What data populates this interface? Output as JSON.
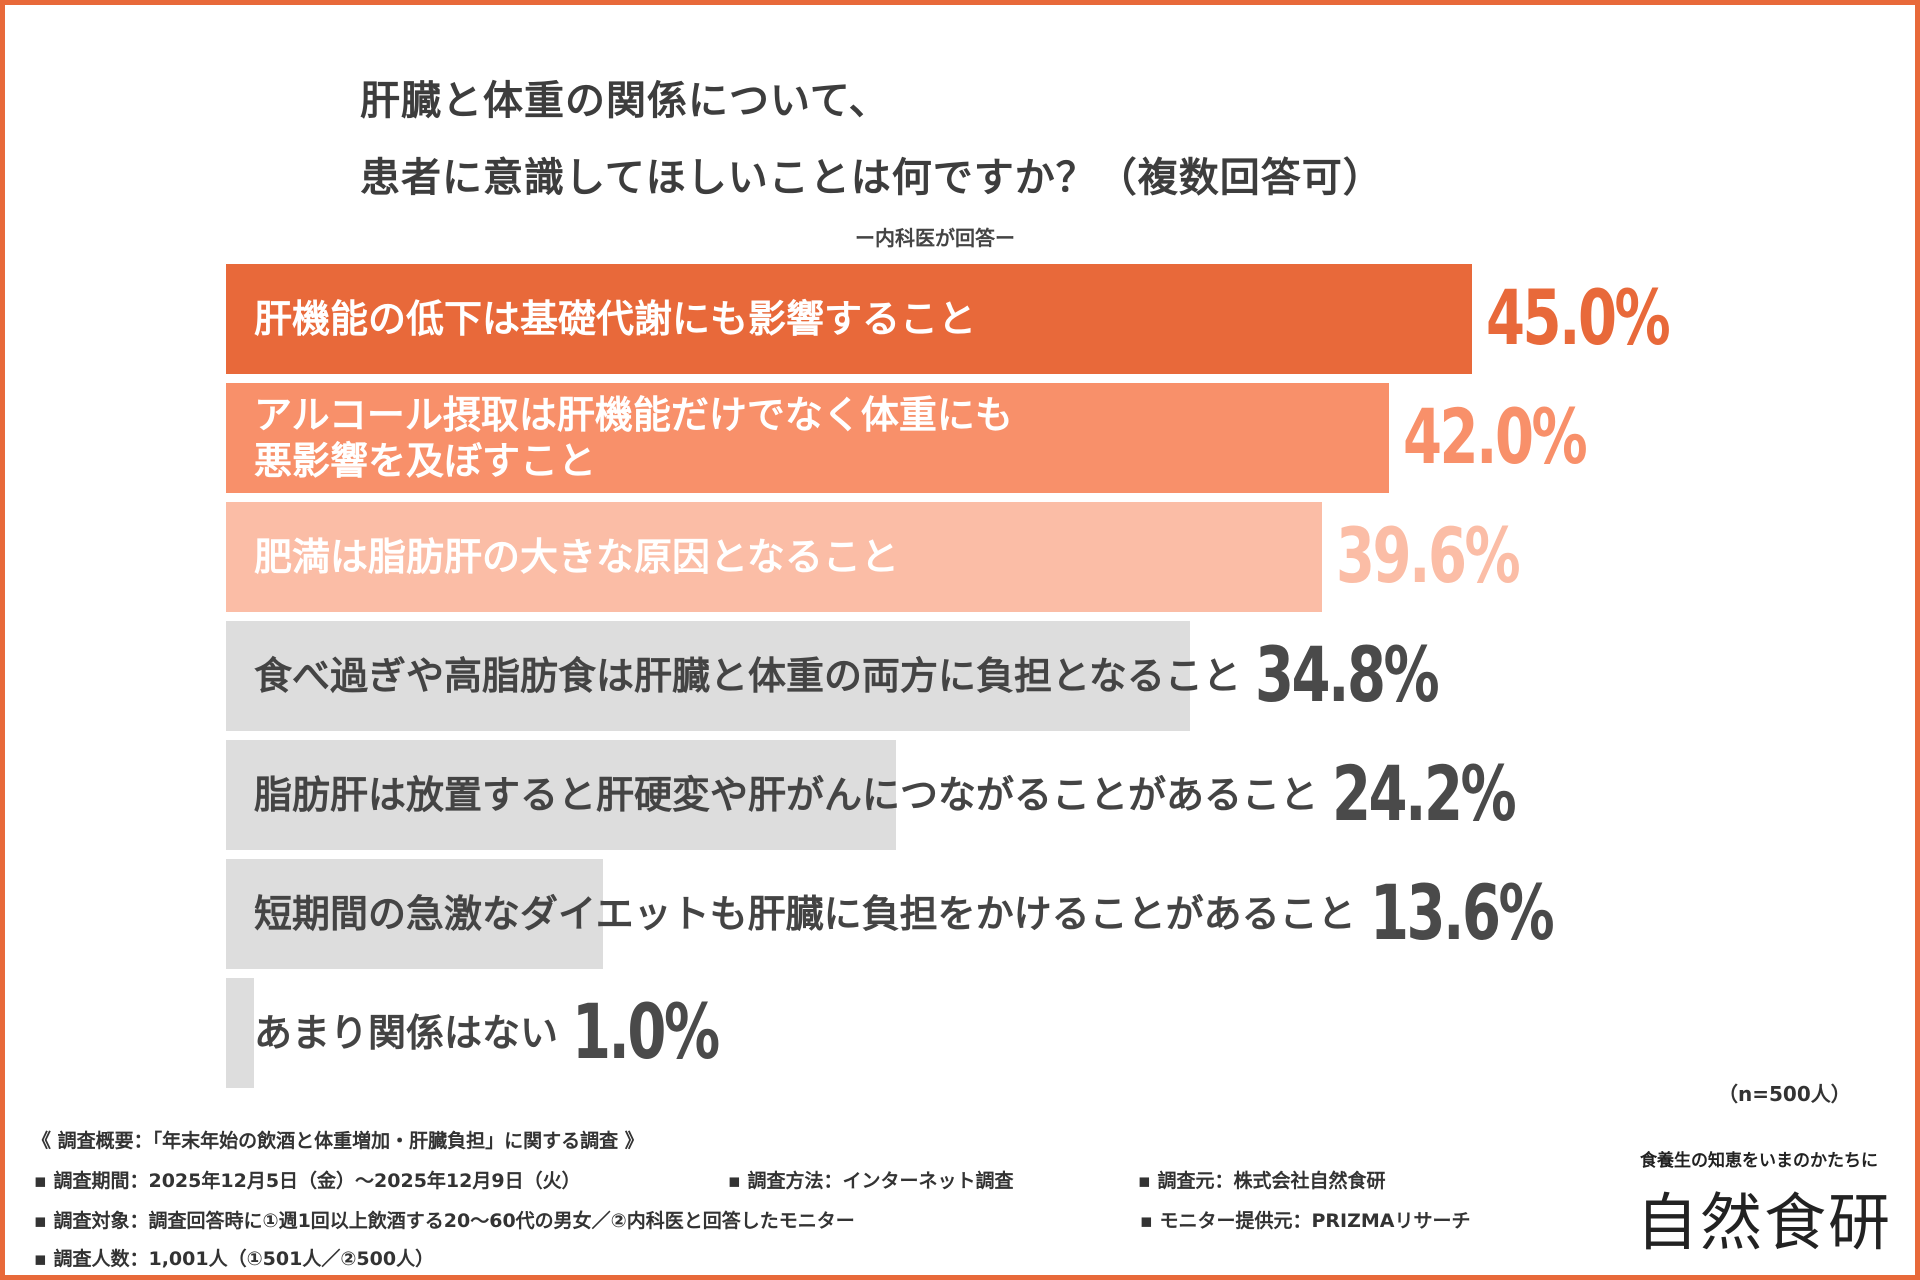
{
  "title": {
    "line1": "肝臓と体重の関係について、",
    "line2": "患者に意識してほしいことは何ですか？（複数回答可）",
    "subtitle": "ー内科医が回答ー"
  },
  "chart_data": {
    "type": "bar",
    "orientation": "horizontal",
    "categories": [
      "肝機能の低下は基礎代謝にも影響すること",
      "アルコール摂取は肝機能だけでなく体重にも\n悪影響を及ぼすこと",
      "肥満は脂肪肝の大きな原因となること",
      "食べ過ぎや高脂肪食は肝臓と体重の両方に負担となること",
      "脂肪肝は放置すると肝硬変や肝がんにつながることがあること",
      "短期間の急激なダイエットも肝臓に負担をかけることがあること",
      "あまり関係はない"
    ],
    "values": [
      45.0,
      42.0,
      39.6,
      34.8,
      24.2,
      13.6,
      1.0
    ],
    "value_labels": [
      "45.0%",
      "42.0%",
      "39.6%",
      "34.8%",
      "24.2%",
      "13.6%",
      "1.0%"
    ],
    "bar_colors": [
      "#e8693a",
      "#f8906a",
      "#fbbda6",
      "#dddddd",
      "#dddddd",
      "#dddddd",
      "#dddddd"
    ],
    "label_colors": [
      "#ffffff",
      "#ffffff",
      "#ffffff",
      "#444444",
      "#444444",
      "#444444",
      "#444444"
    ],
    "value_colors": [
      "#e8693a",
      "#f8906a",
      "#fbbda6",
      "#4a4a4a",
      "#4a4a4a",
      "#4a4a4a",
      "#4a4a4a"
    ],
    "xlim": [
      0,
      45
    ],
    "units": "%"
  },
  "sample_size": "（n=500人）",
  "survey": {
    "overview": "《 調査概要：「年末年始の飲酒と体重増加・肝臓負担」に関する調査 》",
    "period": "▪ 調査期間：2025年12月5日（金）～2025年12月9日（火）",
    "method": "▪ 調査方法：インターネット調査",
    "source": "▪ 調査元：株式会社自然食研",
    "target": "▪ 調査対象：調査回答時に①週1回以上飲酒する20～60代の男女／②内科医と回答したモニター",
    "provider": "▪ モニター提供元：PRIZMAリサーチ",
    "count": "▪ 調査人数：1,001人（①501人／②500人）"
  },
  "logo": {
    "tagline": "食養生の知恵をいまのかたちに",
    "name": "自然食研"
  },
  "colors": {
    "accent": "#e8693a"
  }
}
